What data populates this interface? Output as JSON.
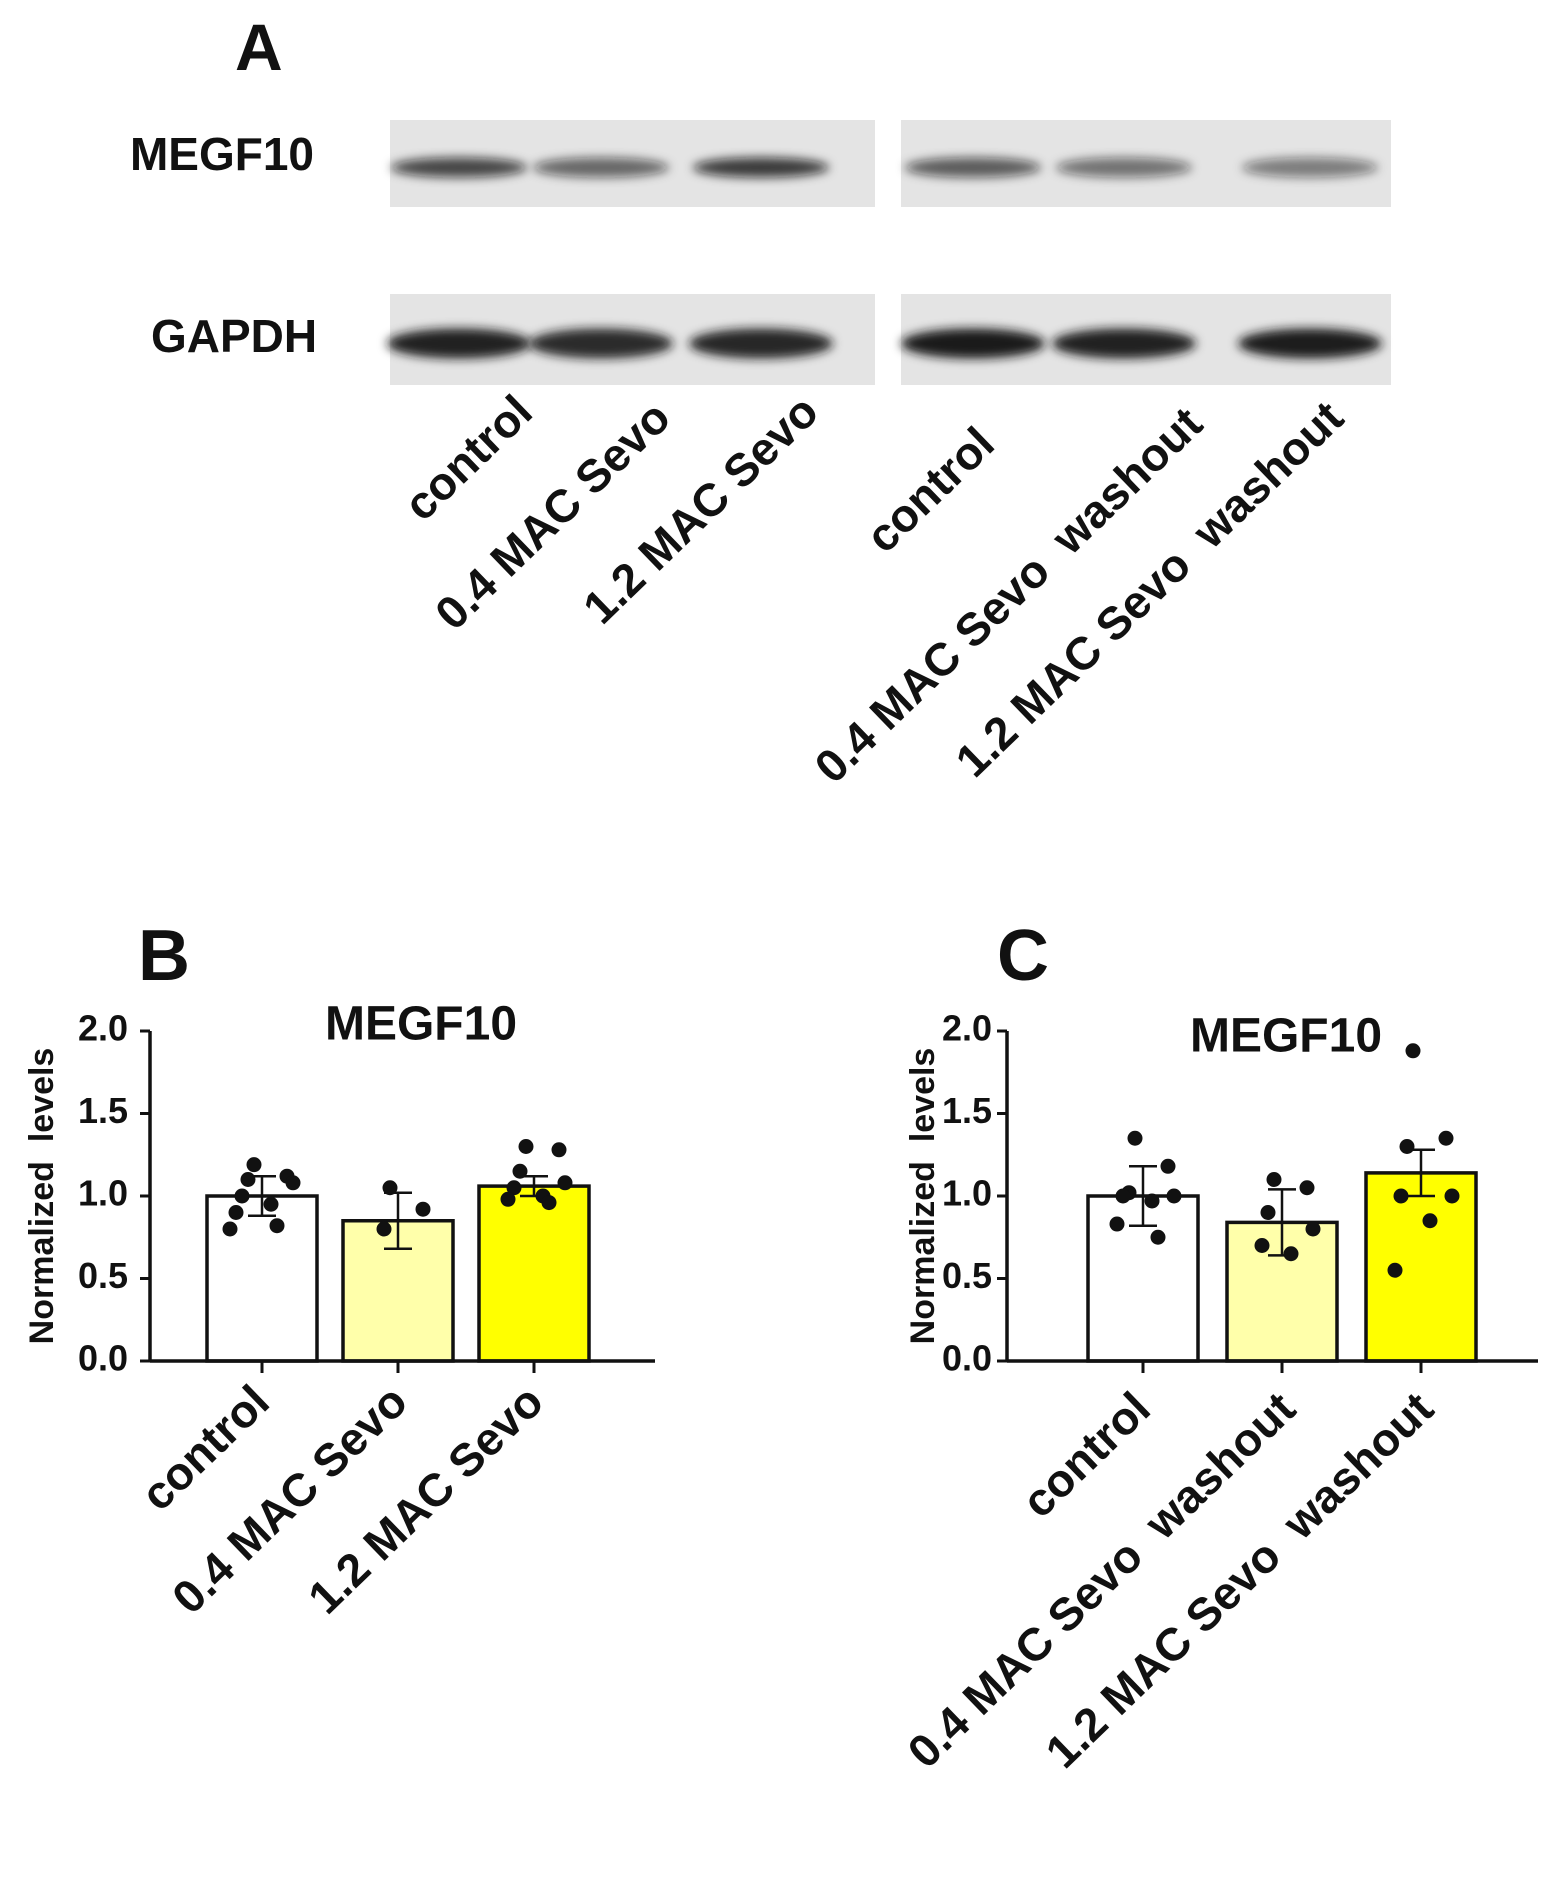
{
  "blot": {
    "panel_label": "A",
    "rows": [
      "MEGF10",
      "GAPDH"
    ],
    "lanes": [
      "control",
      "0.4 MAC Sevo",
      "1.2 MAC Sevo",
      "control",
      "0.4 MAC Sevo  washout",
      "1.2 MAC Sevo  washout"
    ]
  },
  "chart_data": [
    {
      "type": "bar",
      "panel_label": "B",
      "title": "MEGF10",
      "y_label": "Normalized  levels",
      "categories": [
        "control",
        "0.4 MAC Sevo",
        "1.2 MAC Sevo"
      ],
      "values": [
        1.0,
        0.85,
        1.06
      ],
      "errors": [
        0.12,
        0.17,
        0.06
      ],
      "points": [
        [
          1.19,
          1.12,
          1.1,
          1.08,
          1.0,
          0.95,
          0.9,
          0.82,
          0.8
        ],
        [
          1.05,
          0.92,
          0.8
        ],
        [
          1.3,
          1.28,
          1.15,
          1.08,
          1.05,
          1.0,
          0.98,
          0.96
        ]
      ],
      "colors": [
        "#ffffff",
        "#ffffaa",
        "#ffff00"
      ],
      "ylim": [
        0,
        2
      ],
      "yticks": [
        {
          "value": 0,
          "label": "0.0"
        },
        {
          "value": 0.5,
          "label": "0.5"
        },
        {
          "value": 1,
          "label": "1.0"
        },
        {
          "value": 1.5,
          "label": "1.5"
        },
        {
          "value": 2,
          "label": "2.0"
        }
      ]
    },
    {
      "type": "bar",
      "panel_label": "C",
      "title": "MEGF10",
      "y_label": "Normalized  levels",
      "categories": [
        "control",
        "0.4 MAC Sevo  washout",
        "1.2 MAC Sevo  washout"
      ],
      "values": [
        1.0,
        0.84,
        1.14
      ],
      "errors": [
        0.18,
        0.2,
        0.14
      ],
      "points": [
        [
          1.35,
          1.18,
          1.02,
          1.0,
          1.0,
          0.97,
          0.83,
          0.75
        ],
        [
          1.1,
          1.05,
          0.9,
          0.8,
          0.7,
          0.65
        ],
        [
          1.88,
          1.35,
          1.3,
          1.0,
          1.0,
          0.85,
          0.55
        ]
      ],
      "colors": [
        "#ffffff",
        "#ffffaa",
        "#ffff00"
      ],
      "ylim": [
        0,
        2
      ],
      "yticks": [
        {
          "value": 0,
          "label": "0.0"
        },
        {
          "value": 0.5,
          "label": "0.5"
        },
        {
          "value": 1,
          "label": "1.0"
        },
        {
          "value": 1.5,
          "label": "1.5"
        },
        {
          "value": 2,
          "label": "2.0"
        }
      ]
    }
  ]
}
